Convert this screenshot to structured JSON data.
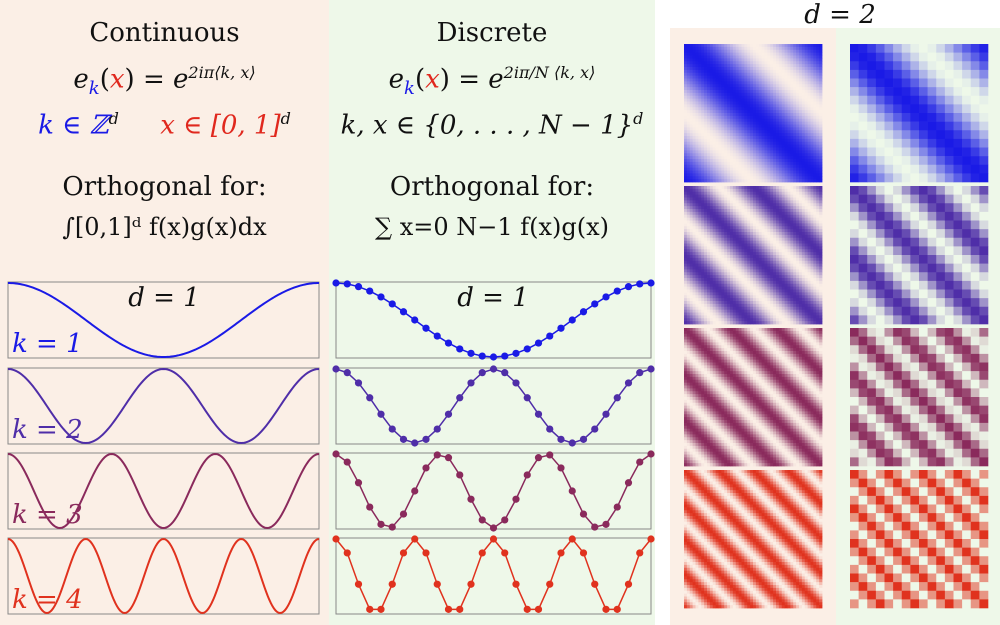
{
  "continuous": {
    "title": "Continuous",
    "basis_lhs": "e",
    "basis_k": "k",
    "basis_x": "x",
    "basis_exp": "2iπ⟨k, x⟩",
    "domain_k": "k ∈ ℤ",
    "domain_k_sup": "d",
    "domain_x": "x ∈ [0, 1]",
    "domain_x_sup": "d",
    "ortho_title": "Orthogonal for:",
    "ortho_formula": "∫[0,1]ᵈ f(x)g(x)dx"
  },
  "discrete": {
    "title": "Discrete",
    "basis_lhs": "e",
    "basis_k": "k",
    "basis_x": "x",
    "basis_exp": "2iπ/N ⟨k, x⟩",
    "domain_kx": "k, x ∈ {0, . . . , N − 1}",
    "domain_sup": "d",
    "ortho_title": "Orthogonal for:",
    "ortho_formula": "∑ x=0 N−1 f(x)g(x)"
  },
  "d1_label": "d = 1",
  "d2_label": "d = 2",
  "k_labels": [
    "k = 1",
    "k = 2",
    "k = 3",
    "k = 4"
  ],
  "colors": {
    "k1": "#1a1ae6",
    "k2": "#4f2ea8",
    "k3": "#8a2a5c",
    "k4": "#e0321e",
    "red": "#e0281e",
    "blue": "#1a1ae6",
    "continuous_bg": "#fbefe6",
    "discrete_bg": "#eef8e9"
  },
  "chart_data": {
    "type": "line",
    "series": [
      {
        "k": 1,
        "function": "cos(2π k x)",
        "x_domain": [
          0,
          1
        ]
      },
      {
        "k": 2,
        "function": "cos(2π k x)",
        "x_domain": [
          0,
          1
        ]
      },
      {
        "k": 3,
        "function": "cos(2π k x)",
        "x_domain": [
          0,
          1
        ]
      },
      {
        "k": 4,
        "function": "cos(2π k x)",
        "x_domain": [
          0,
          1
        ]
      }
    ],
    "discrete_N": 28,
    "d2_grid_N": 16
  }
}
